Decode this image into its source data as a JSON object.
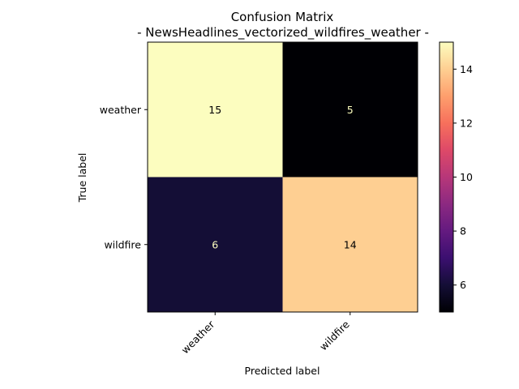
{
  "chart_data": {
    "type": "heatmap",
    "title": "Confusion Matrix",
    "subtitle": "- NewsHeadlines_vectorized_wildfires_weather -",
    "xlabel": "Predicted label",
    "ylabel": "True label",
    "x_categories": [
      "weather",
      "wildfire"
    ],
    "y_categories": [
      "weather",
      "wildfire"
    ],
    "values": [
      [
        15,
        5
      ],
      [
        6,
        14
      ]
    ],
    "colormap": "magma",
    "colorbar": {
      "min": 5,
      "max": 15,
      "ticks": [
        "6",
        "8",
        "10",
        "12",
        "14"
      ]
    },
    "grid": false
  }
}
